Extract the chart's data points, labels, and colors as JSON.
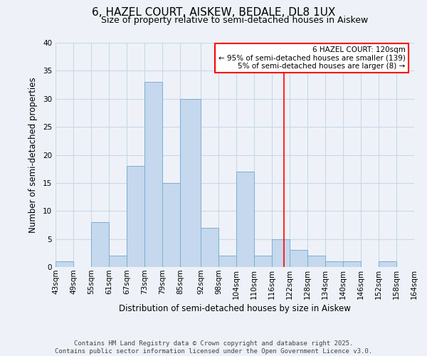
{
  "title": "6, HAZEL COURT, AISKEW, BEDALE, DL8 1UX",
  "subtitle": "Size of property relative to semi-detached houses in Aiskew",
  "xlabel": "Distribution of semi-detached houses by size in Aiskew",
  "ylabel": "Number of semi-detached properties",
  "bin_labels": [
    "43sqm",
    "49sqm",
    "55sqm",
    "61sqm",
    "67sqm",
    "73sqm",
    "79sqm",
    "85sqm",
    "92sqm",
    "98sqm",
    "104sqm",
    "110sqm",
    "116sqm",
    "122sqm",
    "128sqm",
    "134sqm",
    "140sqm",
    "146sqm",
    "152sqm",
    "158sqm",
    "164sqm"
  ],
  "bin_edges": [
    43,
    49,
    55,
    61,
    67,
    73,
    79,
    85,
    92,
    98,
    104,
    110,
    116,
    122,
    128,
    134,
    140,
    146,
    152,
    158,
    164
  ],
  "bar_heights": [
    1,
    0,
    8,
    2,
    18,
    33,
    15,
    30,
    7,
    2,
    17,
    2,
    5,
    3,
    2,
    1,
    1,
    0,
    1,
    0
  ],
  "bar_color": "#c5d8ed",
  "bar_edge_color": "#7bafd4",
  "grid_color": "#c8d8e8",
  "background_color": "#eef2f8",
  "vline_x": 120,
  "vline_color": "red",
  "legend_title": "6 HAZEL COURT: 120sqm",
  "legend_line1": "← 95% of semi-detached houses are smaller (139)",
  "legend_line2": "5% of semi-detached houses are larger (8) →",
  "footer_line1": "Contains HM Land Registry data © Crown copyright and database right 2025.",
  "footer_line2": "Contains public sector information licensed under the Open Government Licence v3.0.",
  "ylim": [
    0,
    40
  ],
  "yticks": [
    0,
    5,
    10,
    15,
    20,
    25,
    30,
    35,
    40
  ],
  "title_fontsize": 11,
  "subtitle_fontsize": 9,
  "ylabel_fontsize": 8.5,
  "xlabel_fontsize": 8.5,
  "tick_fontsize": 7.5,
  "footer_fontsize": 6.5
}
